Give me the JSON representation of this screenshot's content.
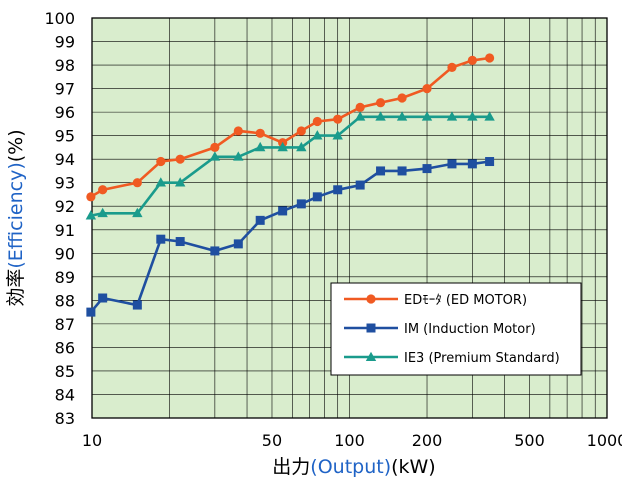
{
  "chart_data": {
    "type": "line",
    "x_scale": "log",
    "xlim": [
      10,
      1000
    ],
    "ylim": [
      83,
      100
    ],
    "x_ticks": [
      10,
      50,
      100,
      200,
      500,
      1000
    ],
    "x_tick_labels": [
      "10",
      "50",
      "100",
      "200",
      "500",
      "1000"
    ],
    "y_ticks": [
      83,
      84,
      85,
      86,
      87,
      88,
      89,
      90,
      91,
      92,
      93,
      94,
      95,
      96,
      97,
      98,
      99,
      100
    ],
    "y_tick_labels": [
      "83",
      "84",
      "85",
      "86",
      "87",
      "88",
      "89",
      "90",
      "91",
      "92",
      "93",
      "94",
      "95",
      "96",
      "97",
      "98",
      "99",
      "100"
    ],
    "xlabel": {
      "main": "出力",
      "sub": "(Output)",
      "unit": "(kW)"
    },
    "ylabel": {
      "main": "効率",
      "sub": "(Efficiency)",
      "unit": "(%)"
    },
    "grid": true,
    "plot_background": "#d9edcd",
    "legend_position": "lower-right",
    "series": [
      {
        "name": "EDﾓｰﾀ (ED MOTOR)",
        "color": "#f05a22",
        "marker": "circle",
        "x": [
          9.9,
          11,
          15,
          18.5,
          22,
          30,
          37,
          45,
          55,
          65,
          75,
          90,
          110,
          132,
          160,
          200,
          250,
          300,
          350
        ],
        "y": [
          92.4,
          92.7,
          93.0,
          93.9,
          94.0,
          94.5,
          95.2,
          95.1,
          94.7,
          95.2,
          95.6,
          95.7,
          96.2,
          96.4,
          96.6,
          97.0,
          97.9,
          98.2,
          98.3
        ]
      },
      {
        "name": "IM (Induction Motor)",
        "color": "#1f4fa0",
        "marker": "square",
        "x": [
          9.9,
          11,
          15,
          18.5,
          22,
          30,
          37,
          45,
          55,
          65,
          75,
          90,
          110,
          132,
          160,
          200,
          250,
          300,
          350
        ],
        "y": [
          87.5,
          88.1,
          87.8,
          90.6,
          90.5,
          90.1,
          90.4,
          91.4,
          91.8,
          92.1,
          92.4,
          92.7,
          92.9,
          93.5,
          93.5,
          93.6,
          93.8,
          93.8,
          93.9
        ]
      },
      {
        "name": "IE3 (Premium Standard)",
        "color": "#1a9b8c",
        "marker": "triangle",
        "x": [
          9.9,
          11,
          15,
          18.5,
          22,
          30,
          37,
          45,
          55,
          65,
          75,
          90,
          110,
          132,
          160,
          200,
          250,
          300,
          350
        ],
        "y": [
          91.6,
          91.7,
          91.7,
          93.0,
          93.0,
          94.1,
          94.1,
          94.5,
          94.5,
          94.5,
          95.0,
          95.0,
          95.8,
          95.8,
          95.8,
          95.8,
          95.8,
          95.8,
          95.8
        ]
      }
    ]
  }
}
